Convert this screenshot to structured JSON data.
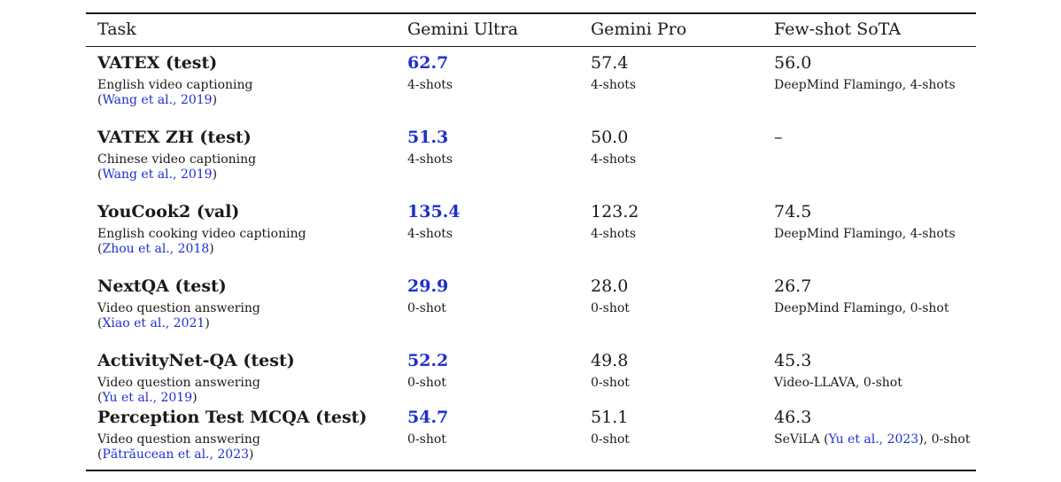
{
  "headers": [
    "Task",
    "Gemini Ultra",
    "Gemini Pro",
    "Few-shot SoTA"
  ],
  "rows": [
    {
      "task": "VATEX (test)",
      "desc": "English video captioning",
      "cite": "Wang et al., 2019",
      "ultra": "62.7",
      "ultra_shots": "4-shots",
      "pro": "57.4",
      "pro_shots": "4-shots",
      "sota": "56.0",
      "sota_pre": "DeepMind Flamingo, 4-shots",
      "sota_cite": "",
      "sota_post": ""
    },
    {
      "task": "VATEX ZH (test)",
      "desc": "Chinese video captioning",
      "cite": "Wang et al., 2019",
      "ultra": "51.3",
      "ultra_shots": "4-shots",
      "pro": "50.0",
      "pro_shots": "4-shots",
      "sota": "–",
      "sota_pre": "",
      "sota_cite": "",
      "sota_post": ""
    },
    {
      "task": "YouCook2 (val)",
      "desc": "English cooking video captioning",
      "cite": "Zhou et al., 2018",
      "ultra": "135.4",
      "ultra_shots": "4-shots",
      "pro": "123.2",
      "pro_shots": "4-shots",
      "sota": "74.5",
      "sota_pre": "DeepMind Flamingo, 4-shots",
      "sota_cite": "",
      "sota_post": ""
    },
    {
      "task": "NextQA (test)",
      "desc": "Video question answering",
      "cite": "Xiao et al., 2021",
      "ultra": "29.9",
      "ultra_shots": "0-shot",
      "pro": "28.0",
      "pro_shots": "0-shot",
      "sota": "26.7",
      "sota_pre": "DeepMind Flamingo, 0-shot",
      "sota_cite": "",
      "sota_post": ""
    },
    {
      "task": "ActivityNet-QA (test)",
      "desc": "Video question answering",
      "cite": "Yu et al., 2019",
      "ultra": "52.2",
      "ultra_shots": "0-shot",
      "pro": "49.8",
      "pro_shots": "0-shot",
      "sota": "45.3",
      "sota_pre": "Video-LLAVA, 0-shot",
      "sota_cite": "",
      "sota_post": ""
    },
    {
      "task": "Perception Test MCQA (test)",
      "desc": "Video question answering",
      "cite": "Pătrăucean et al., 2023",
      "ultra": "54.7",
      "ultra_shots": "0-shot",
      "pro": "51.1",
      "pro_shots": "0-shot",
      "sota": "46.3",
      "sota_pre": "SeViLA (",
      "sota_cite": "Yu et al., 2023",
      "sota_post": "), 0-shot"
    }
  ]
}
